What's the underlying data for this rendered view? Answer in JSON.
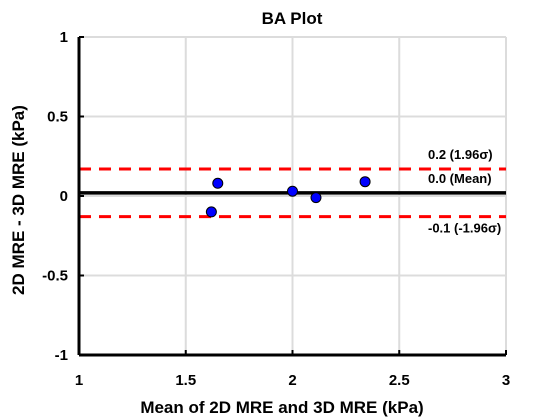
{
  "chart_data": {
    "type": "scatter",
    "title": "BA Plot",
    "xlabel": "Mean of 2D MRE and 3D MRE (kPa)",
    "ylabel": "2D MRE - 3D MRE (kPa)",
    "xlim": [
      1,
      3
    ],
    "ylim": [
      -1,
      1
    ],
    "xticks": [
      1,
      1.5,
      2,
      2.5,
      3
    ],
    "xtick_labels": [
      "1",
      "1.5",
      "2",
      "2.5",
      "3"
    ],
    "yticks": [
      -1,
      -0.5,
      0,
      0.5,
      1
    ],
    "ytick_labels": [
      "-1",
      "-0.5",
      "0",
      "0.5",
      "1"
    ],
    "grid": true,
    "points": [
      {
        "x": 1.62,
        "y": -0.1
      },
      {
        "x": 1.65,
        "y": 0.08
      },
      {
        "x": 2.0,
        "y": 0.03
      },
      {
        "x": 2.11,
        "y": -0.01
      },
      {
        "x": 2.34,
        "y": 0.09
      }
    ],
    "reference_lines": [
      {
        "y": 0.17,
        "label": "0.2 (1.96σ)",
        "style": "dashed",
        "color": "#ff0000"
      },
      {
        "y": 0.02,
        "label": "0.0 (Mean)",
        "style": "solid",
        "color": "#000000"
      },
      {
        "y": -0.13,
        "label": "-0.1 (-1.96σ)",
        "style": "dashed",
        "color": "#ff0000"
      }
    ],
    "colors": {
      "points": "#0000ff",
      "grid": "#dcdcdc"
    }
  }
}
